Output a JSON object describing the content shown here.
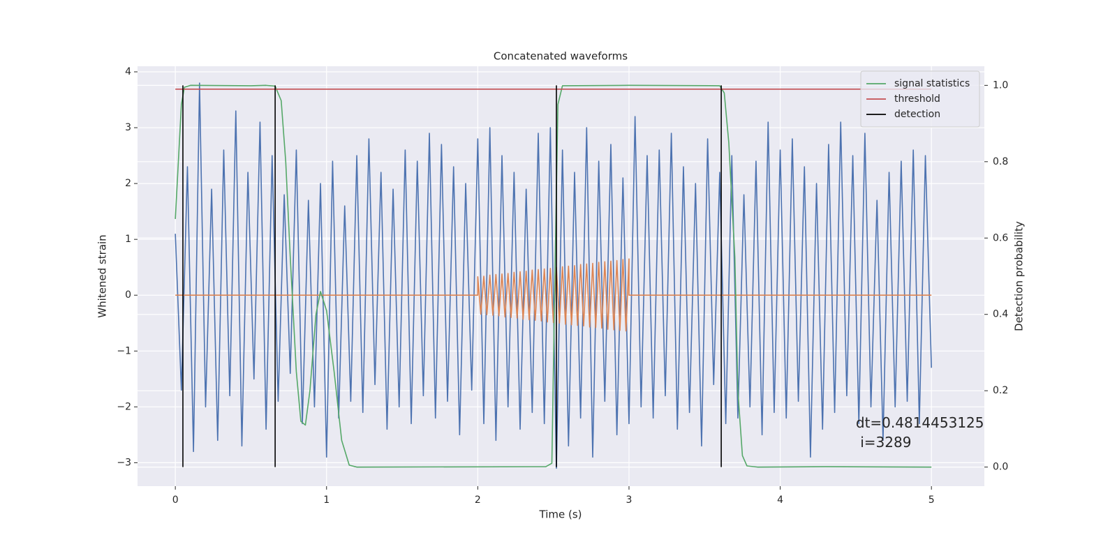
{
  "chart_data": {
    "type": "line",
    "title": "Concatenated waveforms",
    "xlabel": "Time (s)",
    "ylabel": "Whitened strain",
    "y2label": "Detection probability",
    "xlim": [
      -0.25,
      5.35
    ],
    "ylim": [
      -3.42,
      4.1
    ],
    "y2lim": [
      -0.05,
      1.05
    ],
    "xticks": [
      0,
      1,
      2,
      3,
      4,
      5
    ],
    "yticks": [
      {
        "value": -3,
        "label": "−3"
      },
      {
        "value": -2,
        "label": "−2"
      },
      {
        "value": -1,
        "label": "−1"
      },
      0,
      1,
      2,
      3,
      4
    ],
    "y2ticks": [
      {
        "value": 0,
        "label": "0.0"
      },
      {
        "value": 0.2,
        "label": "0.2"
      },
      {
        "value": 0.4,
        "label": "0.4"
      },
      {
        "value": 0.6,
        "label": "0.6"
      },
      {
        "value": 0.8,
        "label": "0.8"
      },
      {
        "value": 1,
        "label": "1.0"
      }
    ],
    "grid": true,
    "background": "#eaeaf2",
    "legend": "upper right",
    "series": [
      {
        "color": "#4c72b0",
        "x": [
          0,
          0.04,
          0.08,
          0.12,
          0.16,
          0.2,
          0.24,
          0.28,
          0.32,
          0.36,
          0.4,
          0.44,
          0.48,
          0.52,
          0.56,
          0.6,
          0.64,
          0.68,
          0.72,
          0.76,
          0.8,
          0.84,
          0.88,
          0.92,
          0.96,
          1,
          1.04,
          1.08,
          1.12,
          1.16,
          1.2,
          1.24,
          1.28,
          1.32,
          1.36,
          1.4,
          1.44,
          1.48,
          1.52,
          1.56,
          1.6,
          1.64,
          1.68,
          1.72,
          1.76,
          1.8,
          1.84,
          1.88,
          1.92,
          1.96,
          2,
          2.04,
          2.08,
          2.12,
          2.16,
          2.2,
          2.24,
          2.28,
          2.32,
          2.36,
          2.4,
          2.44,
          2.48,
          2.52,
          2.56,
          2.6,
          2.64,
          2.68,
          2.72,
          2.76,
          2.8,
          2.84,
          2.88,
          2.92,
          2.96,
          3,
          3.04,
          3.08,
          3.12,
          3.16,
          3.2,
          3.24,
          3.28,
          3.32,
          3.36,
          3.4,
          3.44,
          3.48,
          3.52,
          3.56,
          3.6,
          3.64,
          3.68,
          3.72,
          3.76,
          3.8,
          3.84,
          3.88,
          3.92,
          3.96,
          4,
          4.04,
          4.08,
          4.12,
          4.16,
          4.2,
          4.24,
          4.28,
          4.32,
          4.36,
          4.4,
          4.44,
          4.48,
          4.52,
          4.56,
          4.6,
          4.64,
          4.68,
          4.72,
          4.76,
          4.8,
          4.84,
          4.88,
          4.92,
          4.96,
          5
        ],
        "values": [
          1.1,
          -1.7,
          2.3,
          -2.8,
          3.8,
          -2.0,
          1.9,
          -2.6,
          2.6,
          -1.8,
          3.3,
          -2.7,
          2.2,
          -1.5,
          3.1,
          -2.4,
          2.5,
          -1.9,
          1.8,
          -1.4,
          2.6,
          -2.3,
          1.7,
          -2.0,
          2.0,
          -2.9,
          2.4,
          -2.2,
          1.6,
          -1.9,
          2.5,
          -2.1,
          2.8,
          -1.6,
          2.2,
          -2.4,
          1.9,
          -2.0,
          2.6,
          -2.3,
          2.4,
          -1.8,
          2.9,
          -2.2,
          2.7,
          -1.9,
          2.3,
          -2.5,
          2.0,
          -1.7,
          2.8,
          -2.3,
          3.0,
          -2.6,
          2.5,
          -2.0,
          2.2,
          -2.4,
          1.9,
          -2.1,
          2.9,
          -2.3,
          3.0,
          -3.1,
          2.6,
          -2.7,
          2.2,
          -2.2,
          3.0,
          -2.9,
          2.4,
          -1.9,
          2.7,
          -2.5,
          2.1,
          -2.3,
          3.2,
          -2.0,
          2.5,
          -2.2,
          2.6,
          -1.8,
          2.9,
          -2.4,
          2.3,
          -2.1,
          2.0,
          -2.7,
          2.8,
          -1.6,
          2.2,
          -2.3,
          2.5,
          -2.2,
          1.8,
          -2.0,
          2.4,
          -2.5,
          3.1,
          -2.1,
          2.6,
          -2.2,
          2.8,
          -1.9,
          2.3,
          -2.9,
          2.0,
          -2.4,
          2.7,
          -2.1,
          3.1,
          -1.8,
          2.5,
          -2.3,
          2.9,
          -2.0,
          1.7,
          -2.6,
          2.2,
          -2.0,
          2.4,
          -1.9,
          2.6,
          -2.3,
          2.5,
          -1.3
        ]
      },
      {
        "color": "#dd8452",
        "x": [
          0,
          2,
          2,
          2.02,
          2.04,
          2.06,
          2.08,
          2.1,
          2.12,
          2.14,
          2.16,
          2.18,
          2.2,
          2.22,
          2.24,
          2.26,
          2.28,
          2.3,
          2.32,
          2.34,
          2.36,
          2.38,
          2.4,
          2.42,
          2.44,
          2.46,
          2.48,
          2.5,
          2.52,
          2.54,
          2.56,
          2.58,
          2.6,
          2.62,
          2.64,
          2.66,
          2.68,
          2.7,
          2.72,
          2.74,
          2.76,
          2.78,
          2.8,
          2.82,
          2.84,
          2.86,
          2.88,
          2.9,
          2.92,
          2.94,
          2.96,
          2.98,
          3,
          3,
          5
        ],
        "values": [
          0,
          0,
          0.33,
          -0.34,
          0.34,
          -0.35,
          0.36,
          -0.36,
          0.37,
          -0.37,
          0.38,
          -0.39,
          0.39,
          -0.4,
          0.41,
          -0.41,
          0.42,
          -0.43,
          0.43,
          -0.44,
          0.45,
          -0.45,
          0.46,
          -0.46,
          0.47,
          -0.48,
          0.48,
          -0.49,
          0.5,
          -0.5,
          0.51,
          -0.52,
          0.52,
          -0.53,
          0.53,
          -0.54,
          0.55,
          -0.55,
          0.56,
          -0.57,
          0.57,
          -0.58,
          0.59,
          -0.59,
          0.6,
          -0.61,
          0.61,
          -0.62,
          0.62,
          -0.63,
          0.64,
          -0.64,
          0.65,
          0,
          0
        ]
      },
      {
        "name": "signal statistics",
        "color": "#55a868",
        "axis": "y2",
        "x": [
          0,
          0.02,
          0.04,
          0.06,
          0.1,
          0.5,
          0.6,
          0.66,
          0.7,
          0.73,
          0.76,
          0.8,
          0.83,
          0.86,
          0.89,
          0.93,
          0.96,
          1,
          1.05,
          1.1,
          1.15,
          1.2,
          2.45,
          2.49,
          2.51,
          2.53,
          2.56,
          3,
          3.6,
          3.63,
          3.66,
          3.7,
          3.72,
          3.75,
          3.78,
          3.85,
          4.3,
          5
        ],
        "values": [
          0.65,
          0.8,
          0.95,
          0.995,
          1,
          0.999,
          1,
          0.998,
          0.96,
          0.8,
          0.55,
          0.25,
          0.12,
          0.11,
          0.2,
          0.4,
          0.46,
          0.41,
          0.25,
          0.07,
          0.005,
          0,
          0.001,
          0.01,
          0.5,
          0.95,
          0.999,
          1,
          0.999,
          0.98,
          0.85,
          0.55,
          0.2,
          0.03,
          0.003,
          0,
          0.001,
          0
        ]
      },
      {
        "name": "threshold",
        "color": "#c44e52",
        "axis": "y2",
        "x": [
          0,
          5
        ],
        "values": [
          0.99,
          0.99
        ]
      },
      {
        "name": "detection",
        "color": "#000000",
        "axis": "y2",
        "type": "vlines",
        "x": [
          0.05,
          0.66,
          2.52,
          3.61
        ],
        "ymin": 0,
        "ymax": 1
      }
    ],
    "annotations": [
      {
        "x": 4.5,
        "y": -2.3,
        "lines": [
          "dt=0.4814453125",
          " i=3289"
        ]
      }
    ]
  }
}
